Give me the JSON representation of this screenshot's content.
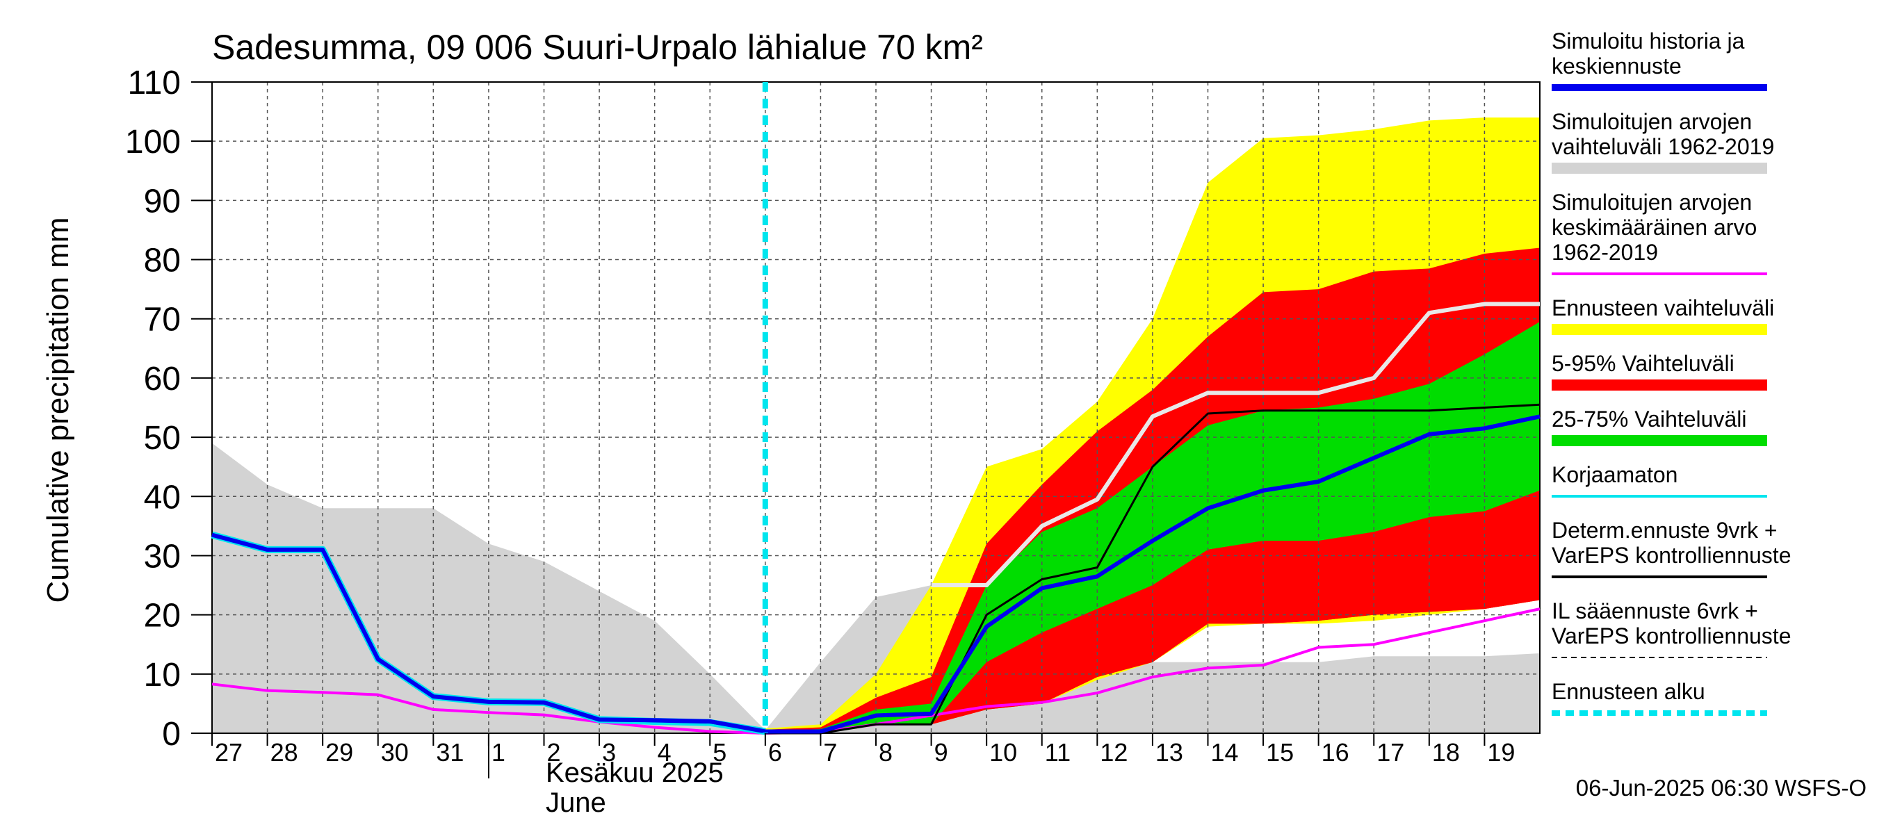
{
  "chart_data": {
    "type": "area",
    "title": "Sadesumma, 09 006 Suuri-Urpalo lähialue 70 km²",
    "ylabel": "Cumulative precipitation   mm",
    "xlabel_fi": "Kesäkuu  2025",
    "xlabel_en": "June",
    "footer": "06-Jun-2025 06:30 WSFS-O",
    "ylim": [
      0,
      110
    ],
    "yticks": [
      0,
      10,
      20,
      30,
      40,
      50,
      60,
      70,
      80,
      90,
      100,
      110
    ],
    "x_day_index_range": [
      0,
      24
    ],
    "x_ticks": [
      {
        "i": 0,
        "label": "27"
      },
      {
        "i": 1,
        "label": "28"
      },
      {
        "i": 2,
        "label": "29"
      },
      {
        "i": 3,
        "label": "30"
      },
      {
        "i": 4,
        "label": "31"
      },
      {
        "i": 5,
        "label": "1"
      },
      {
        "i": 6,
        "label": "2"
      },
      {
        "i": 7,
        "label": "3"
      },
      {
        "i": 8,
        "label": "4"
      },
      {
        "i": 9,
        "label": "5"
      },
      {
        "i": 10,
        "label": "6"
      },
      {
        "i": 11,
        "label": "7"
      },
      {
        "i": 12,
        "label": "8"
      },
      {
        "i": 13,
        "label": "9"
      },
      {
        "i": 14,
        "label": "10"
      },
      {
        "i": 15,
        "label": "11"
      },
      {
        "i": 16,
        "label": "12"
      },
      {
        "i": 17,
        "label": "13"
      },
      {
        "i": 18,
        "label": "14"
      },
      {
        "i": 19,
        "label": "15"
      },
      {
        "i": 20,
        "label": "16"
      },
      {
        "i": 21,
        "label": "17"
      },
      {
        "i": 22,
        "label": "18"
      },
      {
        "i": 23,
        "label": "19"
      }
    ],
    "forecast_start_x": 10,
    "grid": true,
    "colors": {
      "history_range": "#d3d3d3",
      "forecast_range": "#ffff00",
      "p5_95": "#ff0000",
      "p25_75": "#00dd00",
      "simulated": "#0000ee",
      "mean": "#ff00ff",
      "uncorrected": "#00e5ee",
      "deterministic": "#000000",
      "median_line": "#e8e8e8",
      "forecast_start": "#00e5ee"
    },
    "bands": [
      {
        "key": "history_range",
        "upper": [
          [
            0,
            49
          ],
          [
            1,
            42
          ],
          [
            2,
            38
          ],
          [
            3,
            38
          ],
          [
            4,
            38
          ],
          [
            5,
            32
          ],
          [
            6,
            29
          ],
          [
            7,
            24
          ],
          [
            8,
            19
          ],
          [
            9,
            10
          ],
          [
            10,
            0.5
          ],
          [
            11,
            12
          ],
          [
            12,
            23
          ],
          [
            13,
            25
          ],
          [
            14,
            25
          ],
          [
            15,
            13
          ],
          [
            16,
            12
          ],
          [
            17,
            12
          ],
          [
            18,
            12
          ],
          [
            19,
            12
          ],
          [
            20,
            12
          ],
          [
            21,
            13
          ],
          [
            22,
            13
          ],
          [
            23,
            13
          ],
          [
            24,
            13.5
          ]
        ],
        "lower": [
          [
            0,
            0
          ],
          [
            24,
            0
          ]
        ]
      },
      {
        "key": "forecast_range",
        "upper": [
          [
            10,
            0.8
          ],
          [
            11,
            1.5
          ],
          [
            12,
            10
          ],
          [
            13,
            25
          ],
          [
            14,
            45
          ],
          [
            15,
            48
          ],
          [
            16,
            56
          ],
          [
            17,
            70
          ],
          [
            18,
            93
          ],
          [
            19,
            100.5
          ],
          [
            20,
            101
          ],
          [
            21,
            102
          ],
          [
            22,
            103.5
          ],
          [
            23,
            104
          ],
          [
            24,
            104
          ]
        ],
        "lower": [
          [
            10,
            0
          ],
          [
            11,
            0
          ],
          [
            12,
            1.5
          ],
          [
            13,
            1.5
          ],
          [
            14,
            4
          ],
          [
            15,
            5
          ],
          [
            16,
            9
          ],
          [
            17,
            12
          ],
          [
            18,
            18
          ],
          [
            19,
            18.5
          ],
          [
            20,
            18.5
          ],
          [
            21,
            19
          ],
          [
            22,
            20
          ],
          [
            23,
            21
          ],
          [
            24,
            22.5
          ]
        ]
      },
      {
        "key": "p5_95",
        "upper": [
          [
            10,
            0.6
          ],
          [
            11,
            1
          ],
          [
            12,
            6
          ],
          [
            13,
            9.5
          ],
          [
            14,
            32
          ],
          [
            15,
            42
          ],
          [
            16,
            51
          ],
          [
            17,
            58
          ],
          [
            18,
            67
          ],
          [
            19,
            74.5
          ],
          [
            20,
            75
          ],
          [
            21,
            78
          ],
          [
            22,
            78.5
          ],
          [
            23,
            81
          ],
          [
            24,
            82
          ]
        ],
        "lower": [
          [
            10,
            0
          ],
          [
            11,
            0
          ],
          [
            12,
            1.5
          ],
          [
            13,
            1.5
          ],
          [
            14,
            4
          ],
          [
            15,
            5
          ],
          [
            16,
            9.5
          ],
          [
            17,
            12
          ],
          [
            18,
            18.5
          ],
          [
            19,
            18.5
          ],
          [
            20,
            19
          ],
          [
            21,
            20
          ],
          [
            22,
            20.5
          ],
          [
            23,
            21
          ],
          [
            24,
            22.5
          ]
        ]
      },
      {
        "key": "p25_75",
        "upper": [
          [
            10,
            0.4
          ],
          [
            11,
            0.7
          ],
          [
            12,
            4
          ],
          [
            13,
            5
          ],
          [
            14,
            25
          ],
          [
            15,
            34
          ],
          [
            16,
            38
          ],
          [
            17,
            45
          ],
          [
            18,
            52
          ],
          [
            19,
            54.5
          ],
          [
            20,
            55
          ],
          [
            21,
            56.5
          ],
          [
            22,
            59
          ],
          [
            23,
            64
          ],
          [
            24,
            69.5
          ]
        ],
        "lower": [
          [
            10,
            0
          ],
          [
            11,
            0
          ],
          [
            12,
            1.5
          ],
          [
            13,
            1.5
          ],
          [
            14,
            12
          ],
          [
            15,
            17
          ],
          [
            16,
            21
          ],
          [
            17,
            25
          ],
          [
            18,
            31
          ],
          [
            19,
            32.5
          ],
          [
            20,
            32.5
          ],
          [
            21,
            34
          ],
          [
            22,
            36.5
          ],
          [
            23,
            37.5
          ],
          [
            24,
            41
          ]
        ]
      },
      {
        "key": "p5_95_lower",
        "upper": [
          [
            10,
            0
          ],
          [
            11,
            0
          ],
          [
            12,
            1.5
          ],
          [
            13,
            1.5
          ],
          [
            14,
            12
          ],
          [
            15,
            17
          ],
          [
            16,
            21
          ],
          [
            17,
            25
          ],
          [
            18,
            31
          ],
          [
            19,
            32.5
          ],
          [
            20,
            32.5
          ],
          [
            21,
            34
          ],
          [
            22,
            36.5
          ],
          [
            23,
            37.5
          ],
          [
            24,
            41
          ]
        ],
        "lower": [
          [
            10,
            0
          ],
          [
            11,
            0
          ],
          [
            12,
            1.5
          ],
          [
            13,
            1.5
          ],
          [
            14,
            4
          ],
          [
            15,
            5
          ],
          [
            16,
            9.5
          ],
          [
            17,
            12
          ],
          [
            18,
            18.5
          ],
          [
            19,
            18.5
          ],
          [
            20,
            19
          ],
          [
            21,
            20
          ],
          [
            22,
            20.5
          ],
          [
            23,
            21
          ],
          [
            24,
            22.5
          ]
        ]
      }
    ],
    "series": [
      {
        "key": "median_line",
        "width": 6,
        "points": [
          [
            13,
            25
          ],
          [
            14,
            25
          ],
          [
            15,
            35
          ],
          [
            16,
            39.5
          ],
          [
            17,
            53.5
          ],
          [
            18,
            57.5
          ],
          [
            19,
            57.5
          ],
          [
            20,
            57.5
          ],
          [
            21,
            60
          ],
          [
            22,
            71
          ],
          [
            23,
            72.5
          ],
          [
            24,
            72.5
          ]
        ]
      },
      {
        "key": "mean",
        "width": 4,
        "points": [
          [
            0,
            8.3
          ],
          [
            1,
            7.2
          ],
          [
            2,
            6.9
          ],
          [
            3,
            6.5
          ],
          [
            4,
            4
          ],
          [
            5,
            3.5
          ],
          [
            6,
            3.1
          ],
          [
            7,
            1.9
          ],
          [
            8,
            1
          ],
          [
            9,
            0.3
          ],
          [
            10,
            0
          ],
          [
            11,
            0.2
          ],
          [
            12,
            1.5
          ],
          [
            13,
            3
          ],
          [
            14,
            4.5
          ],
          [
            15,
            5.2
          ],
          [
            16,
            6.8
          ],
          [
            17,
            9.5
          ],
          [
            18,
            11
          ],
          [
            19,
            11.5
          ],
          [
            20,
            14.5
          ],
          [
            21,
            15
          ],
          [
            22,
            17
          ],
          [
            23,
            19
          ],
          [
            24,
            21
          ]
        ]
      },
      {
        "key": "deterministic",
        "width": 3,
        "points": [
          [
            10,
            0
          ],
          [
            11,
            0
          ],
          [
            12,
            1.5
          ],
          [
            13,
            1.5
          ],
          [
            14,
            20
          ],
          [
            15,
            26
          ],
          [
            16,
            28
          ],
          [
            17,
            45
          ],
          [
            18,
            54
          ],
          [
            19,
            54.5
          ],
          [
            20,
            54.5
          ],
          [
            21,
            54.5
          ],
          [
            22,
            54.5
          ],
          [
            23,
            55
          ],
          [
            24,
            55.5
          ]
        ]
      },
      {
        "key": "uncorrected",
        "width": 10,
        "points": [
          [
            0,
            33.5
          ],
          [
            1,
            31
          ],
          [
            2,
            31
          ],
          [
            3,
            12.5
          ],
          [
            4,
            6.2
          ],
          [
            5,
            5.3
          ],
          [
            6,
            5.2
          ],
          [
            7,
            2.3
          ],
          [
            8,
            2
          ],
          [
            9,
            1.8
          ],
          [
            10,
            0.3
          ]
        ]
      },
      {
        "key": "simulated",
        "width": 6,
        "points": [
          [
            0,
            33.5
          ],
          [
            1,
            31
          ],
          [
            2,
            31
          ],
          [
            3,
            12.5
          ],
          [
            4,
            6.2
          ],
          [
            5,
            5.3
          ],
          [
            6,
            5.2
          ],
          [
            7,
            2.3
          ],
          [
            8,
            2.2
          ],
          [
            9,
            2
          ],
          [
            10,
            0.3
          ],
          [
            11,
            0.3
          ],
          [
            12,
            3
          ],
          [
            13,
            3.3
          ],
          [
            14,
            18
          ],
          [
            15,
            24.5
          ],
          [
            16,
            26.5
          ],
          [
            17,
            32.5
          ],
          [
            18,
            38
          ],
          [
            19,
            41
          ],
          [
            20,
            42.5
          ],
          [
            21,
            46.5
          ],
          [
            22,
            50.5
          ],
          [
            23,
            51.5
          ],
          [
            24,
            53.5
          ]
        ]
      }
    ],
    "legend": [
      {
        "lines": [
          "Simuloitu historia ja",
          "keskiennuste"
        ],
        "key": "simulated",
        "style": "line-thick"
      },
      {
        "lines": [
          "Simuloitujen arvojen",
          "vaihteluväli 1962-2019"
        ],
        "key": "history_range",
        "style": "bar"
      },
      {
        "lines": [
          "Simuloitujen arvojen",
          "keskimääräinen arvo",
          "   1962-2019"
        ],
        "key": "mean",
        "style": "line"
      },
      {
        "lines": [
          "Ennusteen vaihteluväli"
        ],
        "key": "forecast_range",
        "style": "bar"
      },
      {
        "lines": [
          "5-95% Vaihteluväli"
        ],
        "key": "p5_95",
        "style": "bar"
      },
      {
        "lines": [
          "25-75% Vaihteluväli"
        ],
        "key": "p25_75",
        "style": "bar"
      },
      {
        "lines": [
          "Korjaamaton"
        ],
        "key": "uncorrected",
        "style": "line"
      },
      {
        "lines": [
          "Determ.ennuste 9vrk +",
          "VarEPS kontrolliennuste"
        ],
        "key": "deterministic",
        "style": "line"
      },
      {
        "lines": [
          "IL sääennuste 6vrk  +",
          "  VarEPS kontrolliennuste"
        ],
        "key": "deterministic",
        "style": "dashed"
      },
      {
        "lines": [
          "Ennusteen alku"
        ],
        "key": "forecast_start",
        "style": "dotted"
      }
    ]
  }
}
